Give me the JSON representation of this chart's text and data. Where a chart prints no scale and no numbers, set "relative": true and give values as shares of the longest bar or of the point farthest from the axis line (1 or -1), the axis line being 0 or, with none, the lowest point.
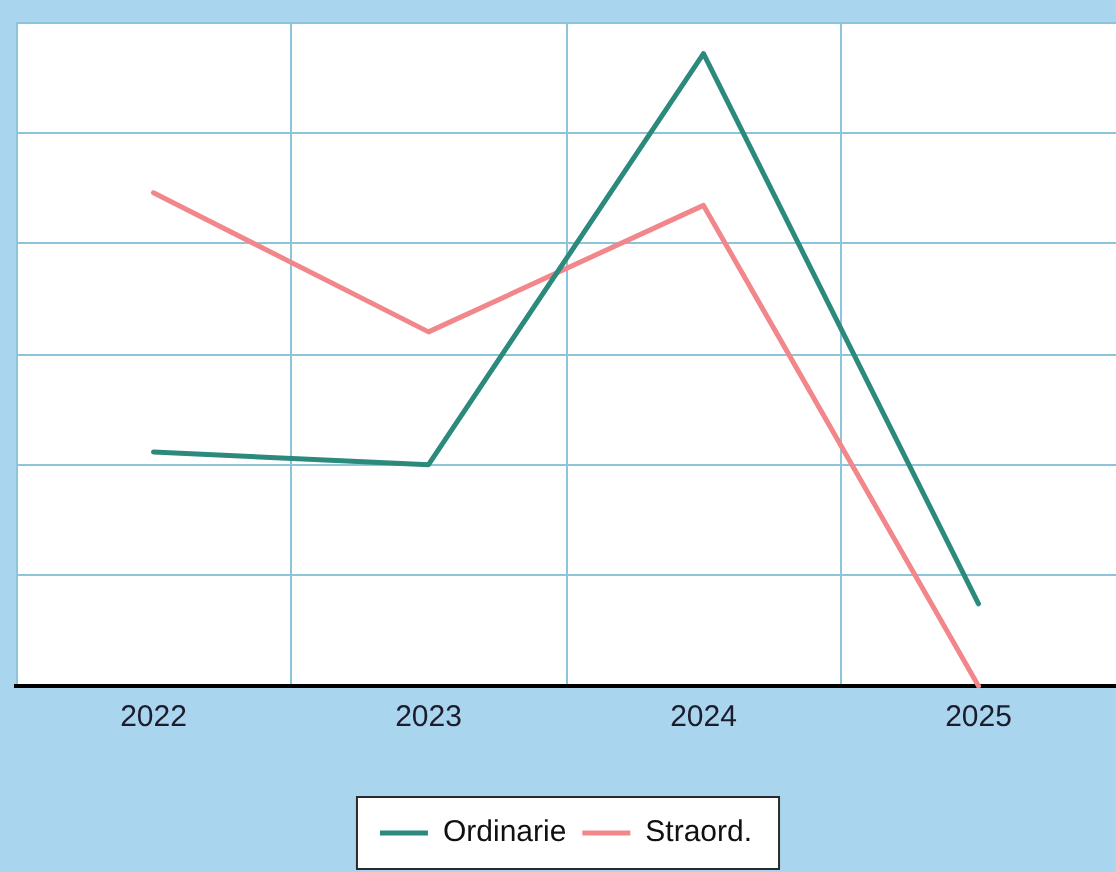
{
  "chart_data": {
    "type": "line",
    "categories": [
      "2022",
      "2023",
      "2024",
      "2025"
    ],
    "relative": true,
    "series": [
      {
        "name": "Ordinarie",
        "color": "#2b8a7c",
        "values": [
          0.37,
          0.35,
          1,
          0.13
        ]
      },
      {
        "name": "Straord.",
        "color": "#f2878b",
        "values": [
          0.78,
          0.56,
          0.76,
          0
        ]
      }
    ],
    "grid": true,
    "legend": "bottom"
  }
}
